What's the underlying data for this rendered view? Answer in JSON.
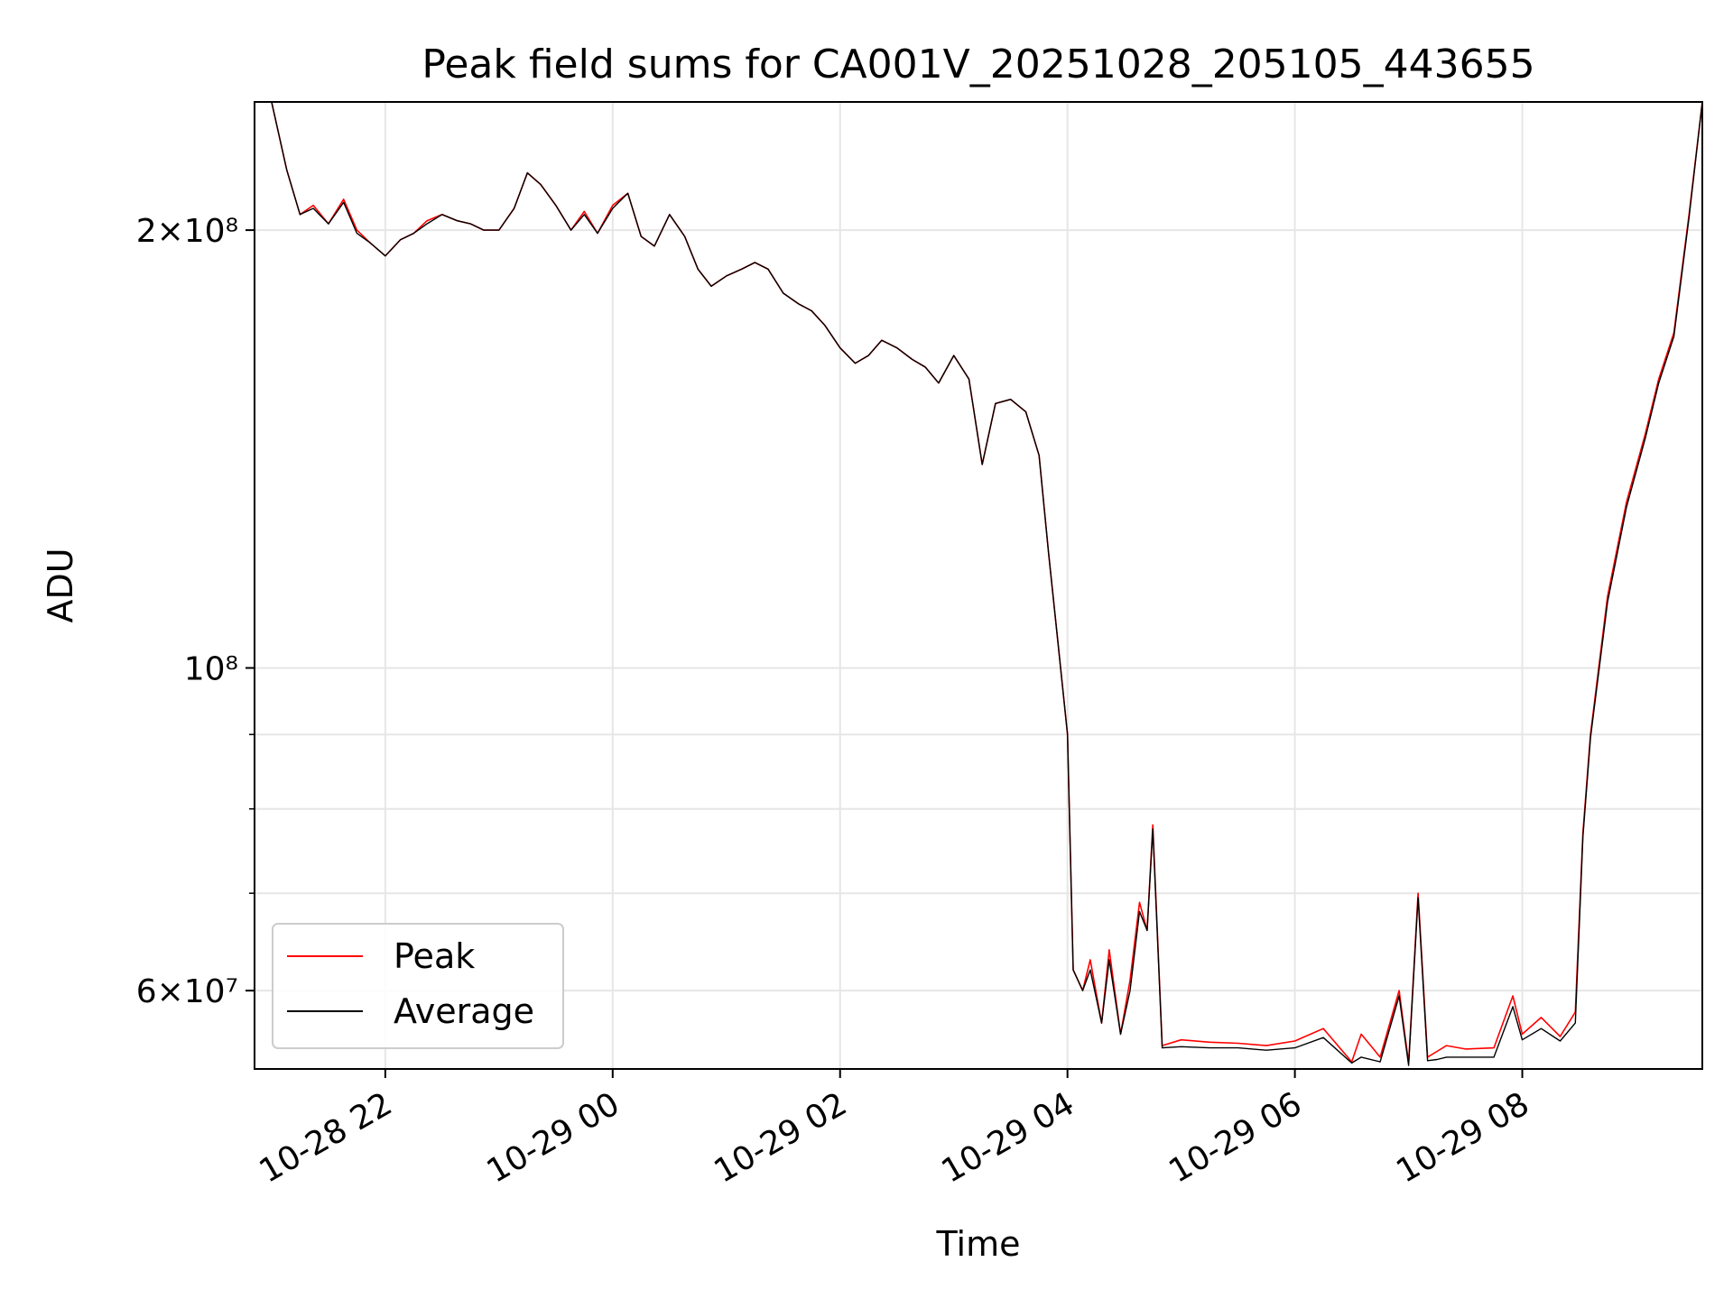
{
  "chart_data": {
    "type": "line",
    "title": "Peak field sums for CA001V_20251028_205105_443655",
    "xlabel": "Time",
    "ylabel": "ADU",
    "yscale": "log",
    "ylim": [
      53000000,
      245000000
    ],
    "xlim": [
      "2025-10-28 20:51",
      "2025-10-29 09:35"
    ],
    "grid": true,
    "legend_position": "lower left",
    "x_ticks": [
      "10-28 22",
      "10-29 00",
      "10-29 02",
      "10-29 04",
      "10-29 06",
      "10-29 08"
    ],
    "x_tick_values": [
      "2025-10-28 22:00",
      "2025-10-29 00:00",
      "2025-10-29 02:00",
      "2025-10-29 04:00",
      "2025-10-29 06:00",
      "2025-10-29 08:00"
    ],
    "y_ticks": [
      {
        "label": "2×10⁸",
        "value": 200000000
      },
      {
        "label": "10⁸",
        "value": 100000000
      },
      {
        "label": "6×10⁷",
        "value": 60000000
      }
    ],
    "y_minor_ticks": [
      70000000,
      80000000,
      90000000
    ],
    "x": [
      "2025-10-28 20:51",
      "2025-10-28 21:00",
      "2025-10-28 21:08",
      "2025-10-28 21:15",
      "2025-10-28 21:22",
      "2025-10-28 21:30",
      "2025-10-28 21:38",
      "2025-10-28 21:45",
      "2025-10-28 21:52",
      "2025-10-28 22:00",
      "2025-10-28 22:08",
      "2025-10-28 22:15",
      "2025-10-28 22:22",
      "2025-10-28 22:30",
      "2025-10-28 22:38",
      "2025-10-28 22:45",
      "2025-10-28 22:52",
      "2025-10-28 23:00",
      "2025-10-28 23:08",
      "2025-10-28 23:15",
      "2025-10-28 23:22",
      "2025-10-28 23:30",
      "2025-10-28 23:38",
      "2025-10-28 23:45",
      "2025-10-28 23:52",
      "2025-10-29 00:00",
      "2025-10-29 00:08",
      "2025-10-29 00:15",
      "2025-10-29 00:22",
      "2025-10-29 00:30",
      "2025-10-29 00:38",
      "2025-10-29 00:45",
      "2025-10-29 00:52",
      "2025-10-29 01:00",
      "2025-10-29 01:08",
      "2025-10-29 01:15",
      "2025-10-29 01:22",
      "2025-10-29 01:30",
      "2025-10-29 01:38",
      "2025-10-29 01:45",
      "2025-10-29 01:52",
      "2025-10-29 02:00",
      "2025-10-29 02:08",
      "2025-10-29 02:15",
      "2025-10-29 02:22",
      "2025-10-29 02:30",
      "2025-10-29 02:38",
      "2025-10-29 02:45",
      "2025-10-29 02:52",
      "2025-10-29 03:00",
      "2025-10-29 03:08",
      "2025-10-29 03:15",
      "2025-10-29 03:22",
      "2025-10-29 03:30",
      "2025-10-29 03:38",
      "2025-10-29 03:45",
      "2025-10-29 03:50",
      "2025-10-29 03:55",
      "2025-10-29 04:00",
      "2025-10-29 04:03",
      "2025-10-29 04:08",
      "2025-10-29 04:12",
      "2025-10-29 04:18",
      "2025-10-29 04:22",
      "2025-10-29 04:28",
      "2025-10-29 04:33",
      "2025-10-29 04:38",
      "2025-10-29 04:42",
      "2025-10-29 04:45",
      "2025-10-29 04:50",
      "2025-10-29 05:00",
      "2025-10-29 05:15",
      "2025-10-29 05:30",
      "2025-10-29 05:45",
      "2025-10-29 06:00",
      "2025-10-29 06:15",
      "2025-10-29 06:30",
      "2025-10-29 06:35",
      "2025-10-29 06:45",
      "2025-10-29 06:55",
      "2025-10-29 07:00",
      "2025-10-29 07:05",
      "2025-10-29 07:10",
      "2025-10-29 07:15",
      "2025-10-29 07:20",
      "2025-10-29 07:30",
      "2025-10-29 07:45",
      "2025-10-29 07:55",
      "2025-10-29 08:00",
      "2025-10-29 08:10",
      "2025-10-29 08:20",
      "2025-10-29 08:28",
      "2025-10-29 08:32",
      "2025-10-29 08:36",
      "2025-10-29 08:45",
      "2025-10-29 08:55",
      "2025-10-29 09:05",
      "2025-10-29 09:12",
      "2025-10-29 09:20",
      "2025-10-29 09:28",
      "2025-10-29 09:35"
    ],
    "series": [
      {
        "name": "Peak",
        "color": "#ff0000",
        "values": [
          245000000,
          245000000,
          220000000,
          205000000,
          208000000,
          202000000,
          210000000,
          200000000,
          196000000,
          192000000,
          197000000,
          199000000,
          203000000,
          205000000,
          203000000,
          202000000,
          200000000,
          200000000,
          207000000,
          219000000,
          215000000,
          208000000,
          200000000,
          206000000,
          199000000,
          208000000,
          212000000,
          198000000,
          195000000,
          205000000,
          198000000,
          188000000,
          183000000,
          186000000,
          188000000,
          190000000,
          188000000,
          181000000,
          178000000,
          176000000,
          172000000,
          166000000,
          162000000,
          164000000,
          168000000,
          166000000,
          163000000,
          161000000,
          157000000,
          164000000,
          158000000,
          138000000,
          152000000,
          153000000,
          150000000,
          140000000,
          120000000,
          104000000,
          90000000,
          62000000,
          60000000,
          63000000,
          57000000,
          64000000,
          56000000,
          61000000,
          69000000,
          66000000,
          78000000,
          55000000,
          55500000,
          55300000,
          55200000,
          55000000,
          55400000,
          56500000,
          53600000,
          56000000,
          54000000,
          60000000,
          53500000,
          70000000,
          54000000,
          54500000,
          55000000,
          54700000,
          54800000,
          59500000,
          56000000,
          57500000,
          55800000,
          58000000,
          77000000,
          90000000,
          112000000,
          130000000,
          145000000,
          158000000,
          170000000,
          205000000,
          245000000
        ]
      },
      {
        "name": "Average",
        "color": "#000000",
        "values": [
          245000000,
          245000000,
          220000000,
          205000000,
          207000000,
          202000000,
          209000000,
          199000000,
          196000000,
          192000000,
          197000000,
          199000000,
          202000000,
          205000000,
          203000000,
          202000000,
          200000000,
          200000000,
          207000000,
          219000000,
          215000000,
          208000000,
          200000000,
          205000000,
          199000000,
          207000000,
          212000000,
          198000000,
          195000000,
          205000000,
          198000000,
          188000000,
          183000000,
          186000000,
          188000000,
          190000000,
          188000000,
          181000000,
          178000000,
          176000000,
          172000000,
          166000000,
          162000000,
          164000000,
          168000000,
          166000000,
          163000000,
          161000000,
          157000000,
          164000000,
          158000000,
          138000000,
          152000000,
          153000000,
          150000000,
          140000000,
          120000000,
          104000000,
          90000000,
          62000000,
          60000000,
          62000000,
          57000000,
          63000000,
          56000000,
          60000000,
          68000000,
          66000000,
          77500000,
          54800000,
          54900000,
          54800000,
          54800000,
          54600000,
          54800000,
          55700000,
          53500000,
          54000000,
          53600000,
          59500000,
          53300000,
          69500000,
          53700000,
          53800000,
          54000000,
          54000000,
          54000000,
          58500000,
          55500000,
          56500000,
          55400000,
          57000000,
          76500000,
          89500000,
          111000000,
          129000000,
          144000000,
          157000000,
          169000000,
          204000000,
          245000000
        ]
      }
    ]
  }
}
